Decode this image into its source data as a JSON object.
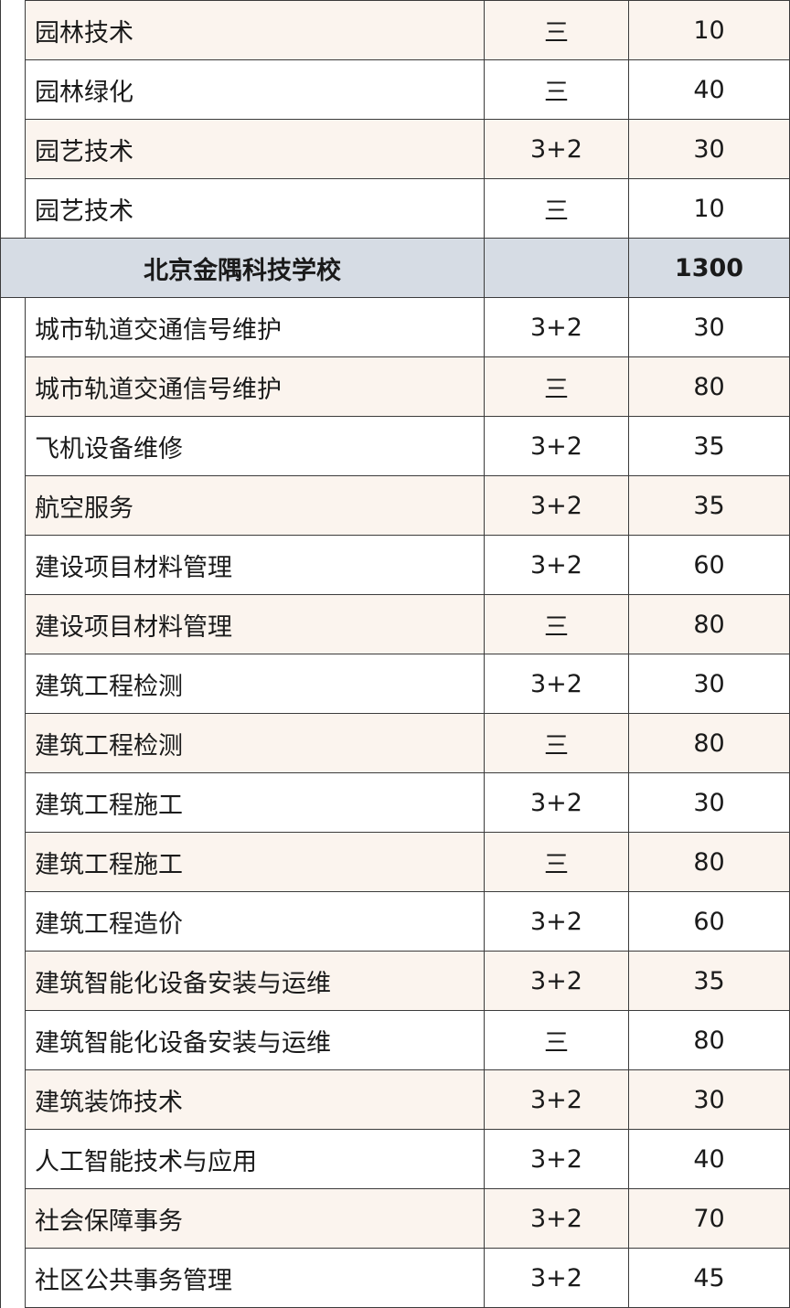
{
  "rows": [
    {
      "kind": "major",
      "name": "园林技术",
      "type": "三",
      "count": "10"
    },
    {
      "kind": "major",
      "name": "园林绿化",
      "type": "三",
      "count": "40"
    },
    {
      "kind": "major",
      "name": "园艺技术",
      "type": "3+2",
      "count": "30"
    },
    {
      "kind": "major",
      "name": "园艺技术",
      "type": "三",
      "count": "10"
    },
    {
      "kind": "school",
      "name": "北京金隅科技学校",
      "count": "1300"
    },
    {
      "kind": "major",
      "name": "城市轨道交通信号维护",
      "type": "3+2",
      "count": "30"
    },
    {
      "kind": "major",
      "name": "城市轨道交通信号维护",
      "type": "三",
      "count": "80"
    },
    {
      "kind": "major",
      "name": "飞机设备维修",
      "type": "3+2",
      "count": "35"
    },
    {
      "kind": "major",
      "name": "航空服务",
      "type": "3+2",
      "count": "35"
    },
    {
      "kind": "major",
      "name": "建设项目材料管理",
      "type": "3+2",
      "count": "60"
    },
    {
      "kind": "major",
      "name": "建设项目材料管理",
      "type": "三",
      "count": "80"
    },
    {
      "kind": "major",
      "name": "建筑工程检测",
      "type": "3+2",
      "count": "30"
    },
    {
      "kind": "major",
      "name": "建筑工程检测",
      "type": "三",
      "count": "80"
    },
    {
      "kind": "major",
      "name": "建筑工程施工",
      "type": "3+2",
      "count": "30"
    },
    {
      "kind": "major",
      "name": "建筑工程施工",
      "type": "三",
      "count": "80"
    },
    {
      "kind": "major",
      "name": "建筑工程造价",
      "type": "3+2",
      "count": "60"
    },
    {
      "kind": "major",
      "name": "建筑智能化设备安装与运维",
      "type": "3+2",
      "count": "35"
    },
    {
      "kind": "major",
      "name": "建筑智能化设备安装与运维",
      "type": "三",
      "count": "80"
    },
    {
      "kind": "major",
      "name": "建筑装饰技术",
      "type": "3+2",
      "count": "30"
    },
    {
      "kind": "major",
      "name": "人工智能技术与应用",
      "type": "3+2",
      "count": "40"
    },
    {
      "kind": "major",
      "name": "社会保障事务",
      "type": "3+2",
      "count": "70"
    },
    {
      "kind": "major",
      "name": "社区公共事务管理",
      "type": "3+2",
      "count": "45"
    }
  ],
  "colors": {
    "shaded_row": "#fbf4ee",
    "school_row": "#d6dce4",
    "border": "#3b3b3b"
  }
}
